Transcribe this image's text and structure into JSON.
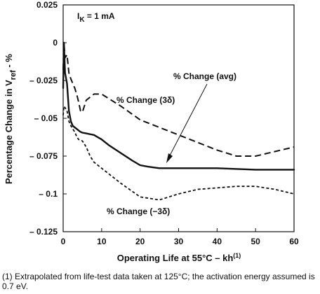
{
  "chart_data": {
    "type": "line",
    "xlabel_main": "Operating Life at 55°C – kh",
    "xlabel_sup": "(1)",
    "ylabel_main": "Percentage Change in V",
    "ylabel_sub": "ref",
    "ylabel_tail": " - %",
    "xlim": [
      0,
      60
    ],
    "ylim": [
      -0.125,
      0.025
    ],
    "x_ticks": [
      0,
      10,
      20,
      30,
      40,
      50,
      60
    ],
    "x_tick_labels": [
      "0",
      "10",
      "20",
      "30",
      "40",
      "50",
      "60"
    ],
    "y_ticks": [
      0.025,
      0,
      -0.025,
      -0.05,
      -0.075,
      -0.1,
      -0.125
    ],
    "y_tick_labels": [
      "0.025",
      "0",
      "– 0.025",
      "– 0.05",
      "– 0.075",
      "– 0.1",
      "– 0.125"
    ],
    "grid": false,
    "condition_main": "I",
    "condition_sub": "K",
    "condition_tail": " = 1 mA",
    "series": [
      {
        "label": "% Change  (avg)",
        "style": "solid",
        "x": [
          0,
          0.2,
          0.5,
          1,
          1.5,
          2,
          2.5,
          3,
          3.5,
          4,
          4.5,
          5,
          6,
          8,
          10,
          12,
          15,
          18,
          20,
          22,
          25,
          30,
          40,
          50,
          60
        ],
        "y": [
          -0.03,
          0.0,
          -0.02,
          -0.027,
          -0.045,
          -0.052,
          -0.055,
          -0.056,
          -0.057,
          -0.058,
          -0.059,
          -0.0595,
          -0.06,
          -0.061,
          -0.064,
          -0.068,
          -0.073,
          -0.078,
          -0.081,
          -0.082,
          -0.083,
          -0.083,
          -0.083,
          -0.084,
          -0.084
        ]
      },
      {
        "label": "% Change  (3δ)",
        "style": "dashed",
        "x": [
          0,
          0.2,
          0.5,
          1,
          1.5,
          2,
          2.5,
          3,
          3.5,
          4,
          4.5,
          5,
          6,
          8,
          10,
          15,
          20,
          25,
          30,
          35,
          40,
          45,
          50,
          55,
          60
        ],
        "y": [
          -0.018,
          0.0,
          -0.01,
          -0.008,
          -0.02,
          -0.024,
          -0.027,
          -0.03,
          -0.034,
          -0.039,
          -0.045,
          -0.046,
          -0.038,
          -0.034,
          -0.034,
          -0.042,
          -0.051,
          -0.056,
          -0.061,
          -0.066,
          -0.071,
          -0.075,
          -0.075,
          -0.072,
          -0.069
        ]
      },
      {
        "label": "% Change  (−3δ)",
        "style": "dotted",
        "x": [
          0,
          0.2,
          0.5,
          1,
          1.5,
          2,
          2.5,
          3,
          3.5,
          4,
          4.5,
          5,
          6,
          7,
          8,
          10,
          15,
          20,
          25,
          30,
          35,
          40,
          45,
          50,
          55,
          60
        ],
        "y": [
          -0.048,
          -0.042,
          -0.043,
          -0.045,
          -0.052,
          -0.055,
          -0.057,
          -0.059,
          -0.062,
          -0.064,
          -0.0645,
          -0.065,
          -0.069,
          -0.075,
          -0.079,
          -0.083,
          -0.093,
          -0.102,
          -0.104,
          -0.1,
          -0.097,
          -0.096,
          -0.095,
          -0.095,
          -0.097,
          -0.1
        ]
      }
    ]
  },
  "footnote": "(1) Extrapolated from life-test data taken at 125°C; the activation energy assumed is 0.7 eV."
}
